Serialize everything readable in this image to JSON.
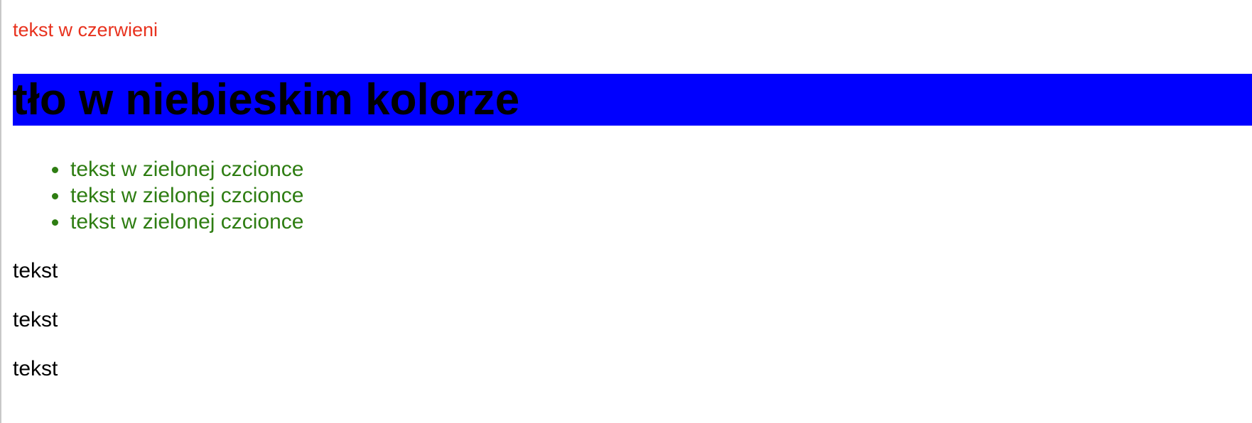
{
  "red_paragraph": "tekst w czerwieni",
  "blue_heading": "tło w niebieskim kolorze",
  "green_list": [
    "tekst w zielonej czcionce",
    "tekst w zielonej czcionce",
    "tekst w zielonej czcionce"
  ],
  "plain_paragraphs": [
    "tekst",
    "tekst",
    "tekst"
  ],
  "colors": {
    "red_text": "#e8321e",
    "heading_background": "#0000ff",
    "green_text": "#2e7d12"
  }
}
